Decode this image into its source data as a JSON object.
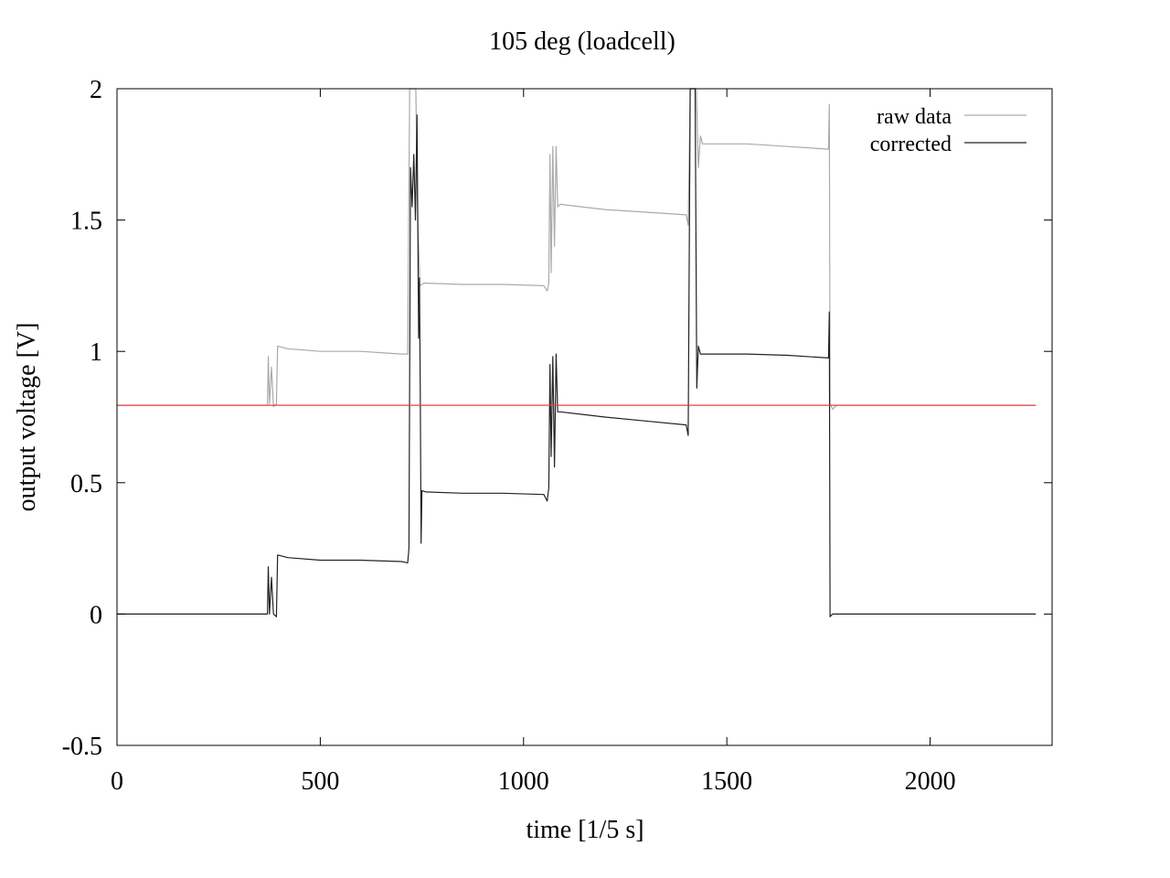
{
  "chart_data": {
    "type": "line",
    "title": "105 deg (loadcell)",
    "xlabel": "time [1/5 s]",
    "ylabel": "output voltage [V]",
    "xlim": [
      0,
      2300
    ],
    "ylim": [
      -0.5,
      2
    ],
    "x_ticks": [
      "0",
      "500",
      "1000",
      "1500",
      "2000"
    ],
    "y_ticks": [
      "-0.5",
      "0",
      "0.5",
      "1",
      "1.5",
      "2"
    ],
    "grid": false,
    "legend_position": "top-right",
    "series": [
      {
        "name": "raw data",
        "color": "#aaaaaa",
        "points": [
          [
            0,
            0.795
          ],
          [
            370,
            0.795
          ],
          [
            372,
            0.98
          ],
          [
            375,
            0.8
          ],
          [
            380,
            0.94
          ],
          [
            385,
            0.79
          ],
          [
            392,
            0.8
          ],
          [
            395,
            1.02
          ],
          [
            420,
            1.01
          ],
          [
            500,
            1.0
          ],
          [
            600,
            1.0
          ],
          [
            700,
            0.99
          ],
          [
            715,
            0.99
          ],
          [
            720,
            2.0
          ],
          [
            735,
            2.0
          ],
          [
            740,
            1.5
          ],
          [
            745,
            1.25
          ],
          [
            755,
            1.26
          ],
          [
            850,
            1.255
          ],
          [
            950,
            1.255
          ],
          [
            1050,
            1.25
          ],
          [
            1058,
            1.23
          ],
          [
            1062,
            1.26
          ],
          [
            1065,
            1.75
          ],
          [
            1068,
            1.3
          ],
          [
            1072,
            1.78
          ],
          [
            1076,
            1.4
          ],
          [
            1080,
            1.78
          ],
          [
            1084,
            1.55
          ],
          [
            1090,
            1.56
          ],
          [
            1200,
            1.54
          ],
          [
            1300,
            1.53
          ],
          [
            1400,
            1.52
          ],
          [
            1405,
            1.48
          ],
          [
            1410,
            2.0
          ],
          [
            1425,
            2.0
          ],
          [
            1430,
            1.7
          ],
          [
            1435,
            1.82
          ],
          [
            1440,
            1.79
          ],
          [
            1550,
            1.79
          ],
          [
            1650,
            1.78
          ],
          [
            1750,
            1.77
          ],
          [
            1752,
            1.94
          ],
          [
            1754,
            0.8
          ],
          [
            1760,
            0.78
          ],
          [
            1770,
            0.795
          ],
          [
            2260,
            0.795
          ]
        ]
      },
      {
        "name": "corrected",
        "color": "#222222",
        "points": [
          [
            0,
            0.0
          ],
          [
            370,
            0.0
          ],
          [
            372,
            0.18
          ],
          [
            375,
            0.0
          ],
          [
            380,
            0.14
          ],
          [
            385,
            0.0
          ],
          [
            392,
            -0.01
          ],
          [
            395,
            0.225
          ],
          [
            420,
            0.215
          ],
          [
            500,
            0.205
          ],
          [
            600,
            0.205
          ],
          [
            700,
            0.2
          ],
          [
            715,
            0.195
          ],
          [
            718,
            0.25
          ],
          [
            722,
            1.7
          ],
          [
            726,
            1.55
          ],
          [
            730,
            1.75
          ],
          [
            734,
            1.5
          ],
          [
            738,
            1.9
          ],
          [
            742,
            1.05
          ],
          [
            744,
            1.28
          ],
          [
            746,
            0.84
          ],
          [
            748,
            0.27
          ],
          [
            750,
            0.47
          ],
          [
            760,
            0.465
          ],
          [
            850,
            0.46
          ],
          [
            950,
            0.46
          ],
          [
            1050,
            0.455
          ],
          [
            1058,
            0.43
          ],
          [
            1062,
            0.48
          ],
          [
            1065,
            0.95
          ],
          [
            1068,
            0.6
          ],
          [
            1072,
            0.98
          ],
          [
            1076,
            0.56
          ],
          [
            1080,
            0.99
          ],
          [
            1084,
            0.77
          ],
          [
            1090,
            0.77
          ],
          [
            1200,
            0.75
          ],
          [
            1300,
            0.735
          ],
          [
            1400,
            0.72
          ],
          [
            1405,
            0.68
          ],
          [
            1410,
            2.0
          ],
          [
            1422,
            2.0
          ],
          [
            1426,
            0.86
          ],
          [
            1430,
            1.02
          ],
          [
            1435,
            0.99
          ],
          [
            1550,
            0.99
          ],
          [
            1650,
            0.985
          ],
          [
            1750,
            0.975
          ],
          [
            1752,
            1.15
          ],
          [
            1754,
            -0.01
          ],
          [
            1760,
            0.0
          ],
          [
            2260,
            0.0
          ]
        ]
      },
      {
        "color": "#e04040",
        "points": [
          [
            0,
            0.795
          ],
          [
            2260,
            0.795
          ]
        ]
      }
    ]
  }
}
